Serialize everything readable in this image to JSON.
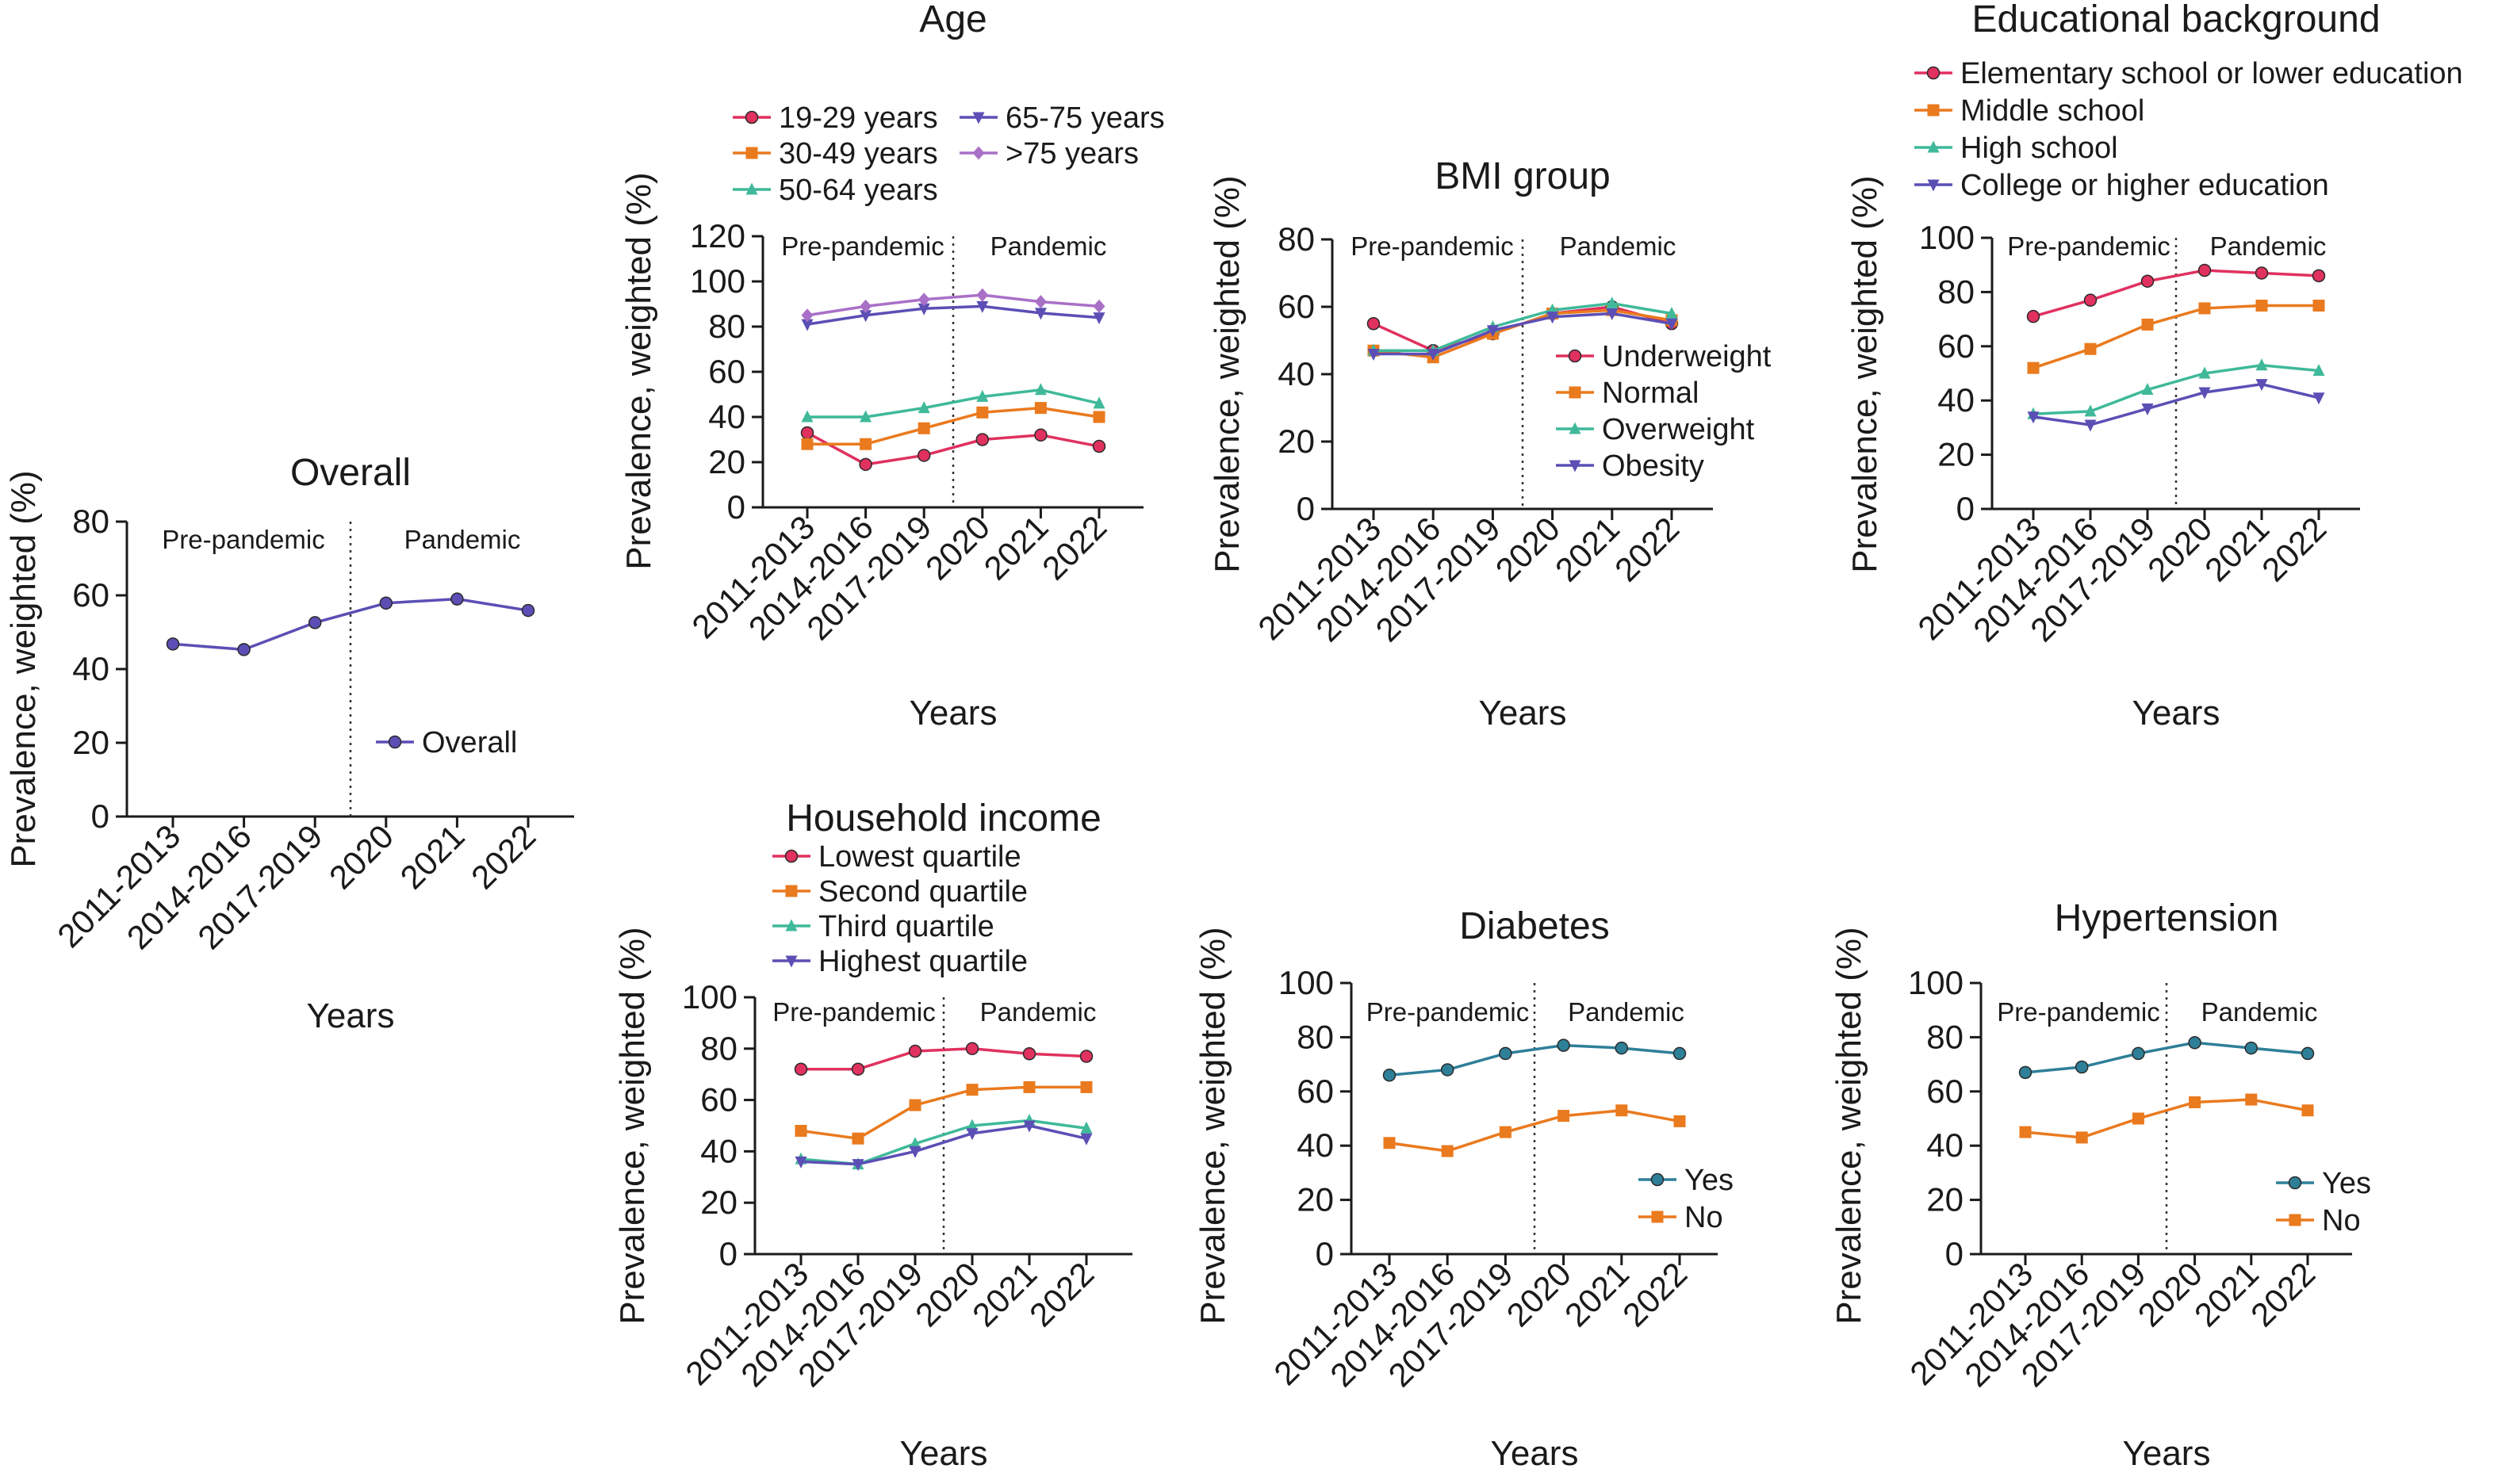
{
  "figure": {
    "charts": [
      {
        "id": "overall",
        "title": "Overall",
        "xlabel": "Years",
        "ylabel": "Prevalence, weighted (%)",
        "ylim": [
          0,
          80
        ],
        "yticks": [
          0,
          20,
          40,
          60,
          80
        ],
        "period_labels": [
          "Pre-pandemic",
          "Pandemic"
        ]
      },
      {
        "id": "age",
        "title": "Age",
        "xlabel": "Years",
        "ylabel": "Prevalence, weighted (%)",
        "ylim": [
          0,
          120
        ],
        "yticks": [
          0,
          20,
          40,
          60,
          80,
          100,
          120
        ],
        "period_labels": [
          "Pre-pandemic",
          "Pandemic"
        ]
      },
      {
        "id": "bmi",
        "title": "BMI group",
        "xlabel": "Years",
        "ylabel": "Prevalence, weighted (%)",
        "ylim": [
          0,
          80
        ],
        "yticks": [
          0,
          20,
          40,
          60,
          80
        ],
        "period_labels": [
          "Pre-pandemic",
          "Pandemic"
        ]
      },
      {
        "id": "education",
        "title": "Educational background",
        "xlabel": "Years",
        "ylabel": "Prevalence, weighted (%)",
        "ylim": [
          0,
          100
        ],
        "yticks": [
          0,
          20,
          40,
          60,
          80,
          100
        ],
        "period_labels": [
          "Pre-pandemic",
          "Pandemic"
        ]
      },
      {
        "id": "income",
        "title": "Household income",
        "xlabel": "Years",
        "ylabel": "Prevalence, weighted (%)",
        "ylim": [
          0,
          100
        ],
        "yticks": [
          0,
          20,
          40,
          60,
          80,
          100
        ],
        "period_labels": [
          "Pre-pandemic",
          "Pandemic"
        ]
      },
      {
        "id": "diabetes",
        "title": "Diabetes",
        "xlabel": "Years",
        "ylabel": "Prevalence, weighted (%)",
        "ylim": [
          0,
          100
        ],
        "yticks": [
          0,
          20,
          40,
          60,
          80,
          100
        ],
        "period_labels": [
          "Pre-pandemic",
          "Pandemic"
        ]
      },
      {
        "id": "hypertension",
        "title": "Hypertension",
        "xlabel": "Years",
        "ylabel": "Prevalence, weighted (%)",
        "ylim": [
          0,
          100
        ],
        "yticks": [
          0,
          20,
          40,
          60,
          80,
          100
        ],
        "period_labels": [
          "Pre-pandemic",
          "Pandemic"
        ]
      }
    ]
  },
  "chart_data": [
    {
      "type": "line",
      "title": "Overall",
      "categories": [
        "2011-2013",
        "2014-2016",
        "2017-2019",
        "2020",
        "2021",
        "2022"
      ],
      "xlabel": "Years",
      "ylabel": "Prevalence, weighted (%)",
      "ylim": [
        0,
        80
      ],
      "legend": "lower-right",
      "series": [
        {
          "name": "Overall",
          "color": "#5b4fb5",
          "marker": "circle",
          "values": [
            46.8,
            45.3,
            52.6,
            57.9,
            59.0,
            55.9
          ]
        }
      ]
    },
    {
      "type": "line",
      "title": "Age",
      "categories": [
        "2011-2013",
        "2014-2016",
        "2017-2019",
        "2020",
        "2021",
        "2022"
      ],
      "xlabel": "Years",
      "ylabel": "Prevalence, weighted (%)",
      "ylim": [
        0,
        120
      ],
      "legend": "top",
      "series": [
        {
          "name": "19-29 years",
          "color": "#e0315f",
          "marker": "circle",
          "values": [
            33,
            19,
            23,
            30,
            32,
            27
          ]
        },
        {
          "name": "30-49 years",
          "color": "#ea7a1e",
          "marker": "square",
          "values": [
            28,
            28,
            35,
            42,
            44,
            40
          ]
        },
        {
          "name": "50-64 years",
          "color": "#3fb99a",
          "marker": "triangle",
          "values": [
            40,
            40,
            44,
            49,
            52,
            46
          ]
        },
        {
          "name": "65-75 years",
          "color": "#5b4fb5",
          "marker": "triangle-down",
          "values": [
            81,
            85,
            88,
            89,
            86,
            84
          ]
        },
        {
          "name": ">75 years",
          "color": "#a970c8",
          "marker": "diamond",
          "values": [
            85,
            89,
            92,
            94,
            91,
            89
          ]
        }
      ]
    },
    {
      "type": "line",
      "title": "BMI group",
      "categories": [
        "2011-2013",
        "2014-2016",
        "2017-2019",
        "2020",
        "2021",
        "2022"
      ],
      "xlabel": "Years",
      "ylabel": "Prevalence, weighted (%)",
      "ylim": [
        0,
        80
      ],
      "legend": "right",
      "series": [
        {
          "name": "Underweight",
          "color": "#e0315f",
          "marker": "circle",
          "values": [
            55,
            47,
            52,
            58,
            60,
            55
          ]
        },
        {
          "name": "Normal",
          "color": "#ea7a1e",
          "marker": "square",
          "values": [
            47,
            45,
            52,
            58,
            59,
            56
          ]
        },
        {
          "name": "Overweight",
          "color": "#3fb99a",
          "marker": "triangle",
          "values": [
            47,
            47,
            54,
            59,
            61,
            58
          ]
        },
        {
          "name": "Obesity",
          "color": "#5b4fb5",
          "marker": "triangle-down",
          "values": [
            46,
            46,
            53,
            57,
            58,
            55
          ]
        }
      ]
    },
    {
      "type": "line",
      "title": "Educational background",
      "categories": [
        "2011-2013",
        "2014-2016",
        "2017-2019",
        "2020",
        "2021",
        "2022"
      ],
      "xlabel": "Years",
      "ylabel": "Prevalence, weighted (%)",
      "ylim": [
        0,
        100
      ],
      "legend": "top",
      "series": [
        {
          "name": "Elementary school or lower education",
          "color": "#e0315f",
          "marker": "circle",
          "values": [
            71,
            77,
            84,
            88,
            87,
            86
          ]
        },
        {
          "name": "Middle school",
          "color": "#ea7a1e",
          "marker": "square",
          "values": [
            52,
            59,
            68,
            74,
            75,
            75
          ]
        },
        {
          "name": "High school",
          "color": "#3fb99a",
          "marker": "triangle",
          "values": [
            35,
            36,
            44,
            50,
            53,
            51
          ]
        },
        {
          "name": "College or higher education",
          "color": "#5b4fb5",
          "marker": "triangle-down",
          "values": [
            34,
            31,
            37,
            43,
            46,
            41
          ]
        }
      ]
    },
    {
      "type": "line",
      "title": "Household income",
      "categories": [
        "2011-2013",
        "2014-2016",
        "2017-2019",
        "2020",
        "2021",
        "2022"
      ],
      "xlabel": "Years",
      "ylabel": "Prevalence, weighted (%)",
      "ylim": [
        0,
        100
      ],
      "legend": "top",
      "series": [
        {
          "name": "Lowest quartile",
          "color": "#e0315f",
          "marker": "circle",
          "values": [
            72,
            72,
            79,
            80,
            78,
            77
          ]
        },
        {
          "name": "Second quartile",
          "color": "#ea7a1e",
          "marker": "square",
          "values": [
            48,
            45,
            58,
            64,
            65,
            65
          ]
        },
        {
          "name": "Third quartile",
          "color": "#3fb99a",
          "marker": "triangle",
          "values": [
            37,
            35,
            43,
            50,
            52,
            49
          ]
        },
        {
          "name": "Highest quartile",
          "color": "#5b4fb5",
          "marker": "triangle-down",
          "values": [
            36,
            35,
            40,
            47,
            50,
            45
          ]
        }
      ]
    },
    {
      "type": "line",
      "title": "Diabetes",
      "categories": [
        "2011-2013",
        "2014-2016",
        "2017-2019",
        "2020",
        "2021",
        "2022"
      ],
      "xlabel": "Years",
      "ylabel": "Prevalence, weighted (%)",
      "ylim": [
        0,
        100
      ],
      "legend": "lower-right",
      "series": [
        {
          "name": "Yes",
          "color": "#2e7f98",
          "marker": "circle",
          "values": [
            66,
            68,
            74,
            77,
            76,
            74
          ]
        },
        {
          "name": "No",
          "color": "#ea7a1e",
          "marker": "square",
          "values": [
            41,
            38,
            45,
            51,
            53,
            49
          ]
        }
      ]
    },
    {
      "type": "line",
      "title": "Hypertension",
      "categories": [
        "2011-2013",
        "2014-2016",
        "2017-2019",
        "2020",
        "2021",
        "2022"
      ],
      "xlabel": "Years",
      "ylabel": "Prevalence, weighted (%)",
      "ylim": [
        0,
        100
      ],
      "legend": "lower-right",
      "series": [
        {
          "name": "Yes",
          "color": "#2e7f98",
          "marker": "circle",
          "values": [
            67,
            69,
            74,
            78,
            76,
            74
          ]
        },
        {
          "name": "No",
          "color": "#ea7a1e",
          "marker": "square",
          "values": [
            45,
            43,
            50,
            56,
            57,
            53
          ]
        }
      ]
    }
  ]
}
